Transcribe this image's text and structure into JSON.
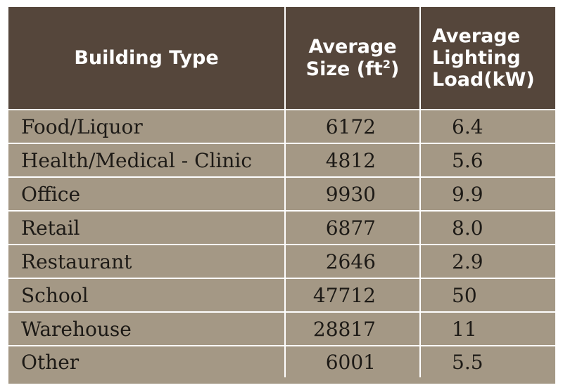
{
  "table": {
    "headers": {
      "building_type": "Building Type",
      "avg_size_line1": "Average",
      "avg_size_line2": "Size (ft",
      "avg_size_sup": "2",
      "avg_size_close": ")",
      "avg_load_line1": "Average",
      "avg_load_line2": "Lighting",
      "avg_load_line3": "Load(kW)"
    },
    "rows": [
      {
        "type": "Food/Liquor",
        "size": "6172",
        "load": "6.4"
      },
      {
        "type": "Health/Medical - Clinic",
        "size": "4812",
        "load": "5.6"
      },
      {
        "type": "Office",
        "size": "9930",
        "load": "9.9"
      },
      {
        "type": "Retail",
        "size": "6877",
        "load": "8.0"
      },
      {
        "type": "Restaurant",
        "size": "2646",
        "load": "2.9"
      },
      {
        "type": "School",
        "size": "47712",
        "load": "50"
      },
      {
        "type": "Warehouse",
        "size": "28817",
        "load": "11"
      },
      {
        "type": "Other",
        "size": "6001",
        "load": "5.5"
      }
    ]
  },
  "colors": {
    "header_bg": "#55463b",
    "row_bg": "#a49885",
    "grid_lines": "#ffffff",
    "header_text": "#ffffff",
    "cell_text": "#1d1a16"
  }
}
